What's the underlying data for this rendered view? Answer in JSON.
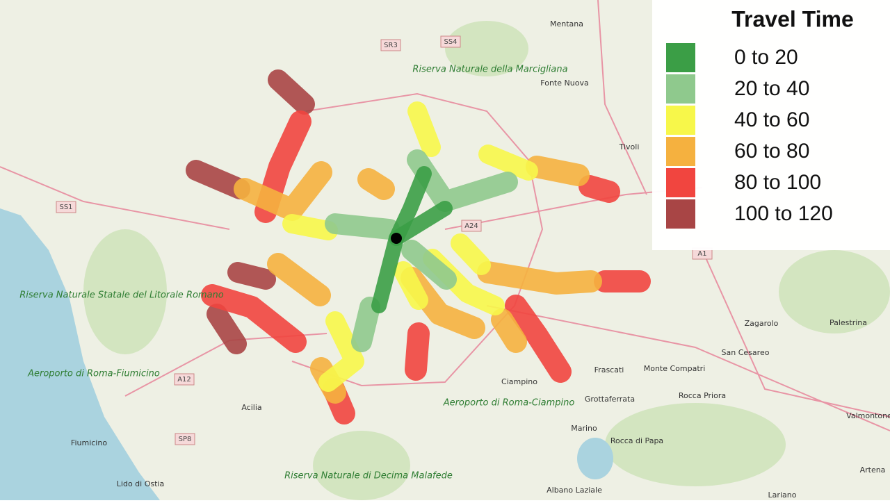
{
  "legend": {
    "title": "Travel Time",
    "items": [
      {
        "label": "0 to 20",
        "color": "#3b9e46"
      },
      {
        "label": "20 to 40",
        "color": "#8fc98d"
      },
      {
        "label": "40 to 60",
        "color": "#f7f74a"
      },
      {
        "label": "60 to 80",
        "color": "#f5b13f"
      },
      {
        "label": "80 to 100",
        "color": "#f1453f"
      },
      {
        "label": "100 to 120",
        "color": "#a84545"
      }
    ]
  },
  "places": [
    "Mentana",
    "Fonte Nuova",
    "Tivoli",
    "Zagarolo",
    "Palestrina",
    "San Cesareo",
    "Frascati",
    "Monte Compatri",
    "Rocca Priora",
    "Grottaferrata",
    "Ciampino",
    "Marino",
    "Rocca di Papa",
    "Albano Laziale",
    "Acilia",
    "Fiumicino",
    "Lido di Ostia",
    "Valmontone",
    "Artena",
    "Lariano"
  ],
  "parks": [
    "Riserva Naturale della Marcigliana",
    "Riserva Naturale Statale del Litorale Romano",
    "Riserva Naturale di Decima Malafede",
    "Aeroporto di Roma-Fiumicino",
    "Aeroporto di Roma-Ciampino"
  ],
  "roads": [
    "SS1",
    "A12",
    "SP8",
    "A24",
    "SR3",
    "SS4",
    "A1"
  ]
}
